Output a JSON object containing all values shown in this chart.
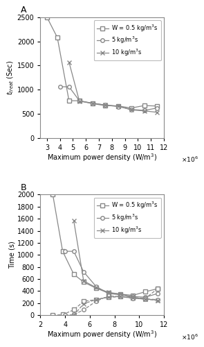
{
  "panel_A": {
    "ylabel": "$t_{treat}$ (Sec)",
    "xlabel": "Maximum power density (W/m$^3$)",
    "xlim": [
      2500000.0,
      12000000.0
    ],
    "ylim": [
      0,
      2500
    ],
    "yticks": [
      0,
      500,
      1000,
      1500,
      2000,
      2500
    ],
    "xticks": [
      3000000.0,
      4000000.0,
      5000000.0,
      6000000.0,
      7000000.0,
      8000000.0,
      9000000.0,
      10000000.0,
      11000000.0,
      12000000.0
    ],
    "xticklabels": [
      "3",
      "4",
      "5",
      "6",
      "7",
      "8",
      "9",
      "10",
      "11",
      "12"
    ],
    "series": [
      {
        "label": "W = 0.5 kg/m$^3$s",
        "marker": "s",
        "x": [
          3000000.0,
          3800000.0,
          4700000.0,
          5500000.0,
          6500000.0,
          7500000.0,
          8500000.0,
          9500000.0,
          10500000.0,
          11500000.0
        ],
        "y": [
          2500,
          2080,
          770,
          770,
          710,
          670,
          660,
          620,
          670,
          660
        ]
      },
      {
        "label": "5 kg/m$^3$s",
        "marker": "o",
        "x": [
          4000000.0,
          4700000.0,
          5500000.0,
          6500000.0,
          7500000.0,
          8500000.0,
          9500000.0,
          10500000.0,
          11500000.0
        ],
        "y": [
          1060,
          1060,
          770,
          720,
          680,
          650,
          590,
          570,
          620
        ]
      },
      {
        "label": "10 kg/m$^3$s",
        "marker": "x",
        "x": [
          4700000.0,
          5500000.0,
          6500000.0,
          7500000.0,
          8500000.0,
          9500000.0,
          10500000.0,
          11500000.0
        ],
        "y": [
          1570,
          760,
          720,
          680,
          660,
          580,
          560,
          530
        ]
      }
    ]
  },
  "panel_B": {
    "ylabel": "Time (s)",
    "xlabel": "Maximum power density (W/m$^3$)",
    "xlim": [
      2000000.0,
      12000000.0
    ],
    "ylim": [
      0,
      2000
    ],
    "yticks": [
      0,
      200,
      400,
      600,
      800,
      1000,
      1200,
      1400,
      1600,
      1800,
      2000
    ],
    "xticks": [
      2000000.0,
      4000000.0,
      6000000.0,
      8000000.0,
      10000000.0,
      12000000.0
    ],
    "xticklabels": [
      "2",
      "4",
      "6",
      "8",
      "10",
      "12"
    ],
    "heating_series": [
      {
        "label": "W = 0.5 kg/m$^3$s",
        "marker": "s",
        "x": [
          3000000.0,
          3800000.0,
          4700000.0,
          5500000.0,
          6500000.0,
          7500000.0,
          8500000.0,
          9500000.0,
          10500000.0,
          11500000.0
        ],
        "y": [
          2000,
          1060,
          680,
          550,
          450,
          370,
          350,
          330,
          390,
          440
        ]
      },
      {
        "label": "5 kg/m$^3$s",
        "marker": "o",
        "x": [
          4000000.0,
          4700000.0,
          5500000.0,
          6500000.0,
          7500000.0,
          8500000.0,
          9500000.0,
          10500000.0,
          11500000.0
        ],
        "y": [
          1060,
          1060,
          720,
          480,
          360,
          340,
          310,
          300,
          360
        ]
      },
      {
        "label": "10 kg/m$^3$s",
        "marker": "x",
        "x": [
          4700000.0,
          5500000.0,
          6500000.0,
          7500000.0,
          8500000.0,
          9500000.0,
          10500000.0,
          11500000.0
        ],
        "y": [
          1570,
          570,
          460,
          380,
          350,
          290,
          270,
          250
        ]
      }
    ],
    "cooling_series": [
      {
        "label": "_nolegend_",
        "marker": "s",
        "x": [
          3000000.0,
          3800000.0,
          4700000.0,
          5500000.0,
          6500000.0,
          7500000.0,
          8500000.0,
          9500000.0,
          10500000.0,
          11500000.0
        ],
        "y": [
          0,
          10,
          90,
          230,
          260,
          300,
          310,
          295,
          280,
          440
        ]
      },
      {
        "label": "_nolegend_",
        "marker": "o",
        "x": [
          4000000.0,
          4700000.0,
          5500000.0,
          6500000.0,
          7500000.0,
          8500000.0,
          9500000.0,
          10500000.0,
          11500000.0
        ],
        "y": [
          0,
          10,
          90,
          230,
          320,
          310,
          280,
          270,
          260
        ]
      },
      {
        "label": "_nolegend_",
        "marker": "x",
        "x": [
          4700000.0,
          5500000.0,
          6500000.0,
          7500000.0,
          8500000.0,
          9500000.0,
          10500000.0,
          11500000.0
        ],
        "y": [
          0,
          190,
          260,
          300,
          310,
          285,
          265,
          250
        ]
      }
    ]
  },
  "line_color": "#888888",
  "marker_facecolor": "#ffffff",
  "label_A": "A",
  "label_B": "B"
}
